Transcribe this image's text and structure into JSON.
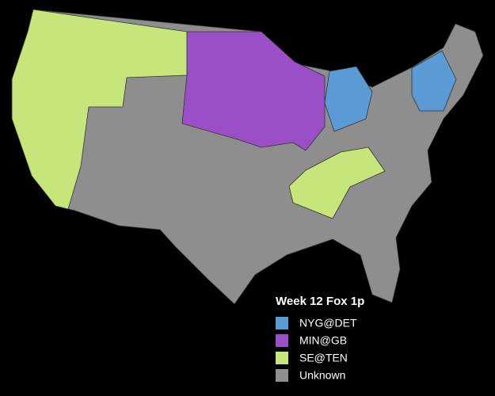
{
  "legend": {
    "title": "Week 12 Fox 1p",
    "items": [
      {
        "label": "NYG@DET",
        "color": "#5b9bd5"
      },
      {
        "label": "MIN@GB",
        "color": "#9b4fc6"
      },
      {
        "label": "SE@TEN",
        "color": "#c6e67b"
      },
      {
        "label": "Unknown",
        "color": "#8e8e8e"
      }
    ]
  }
}
